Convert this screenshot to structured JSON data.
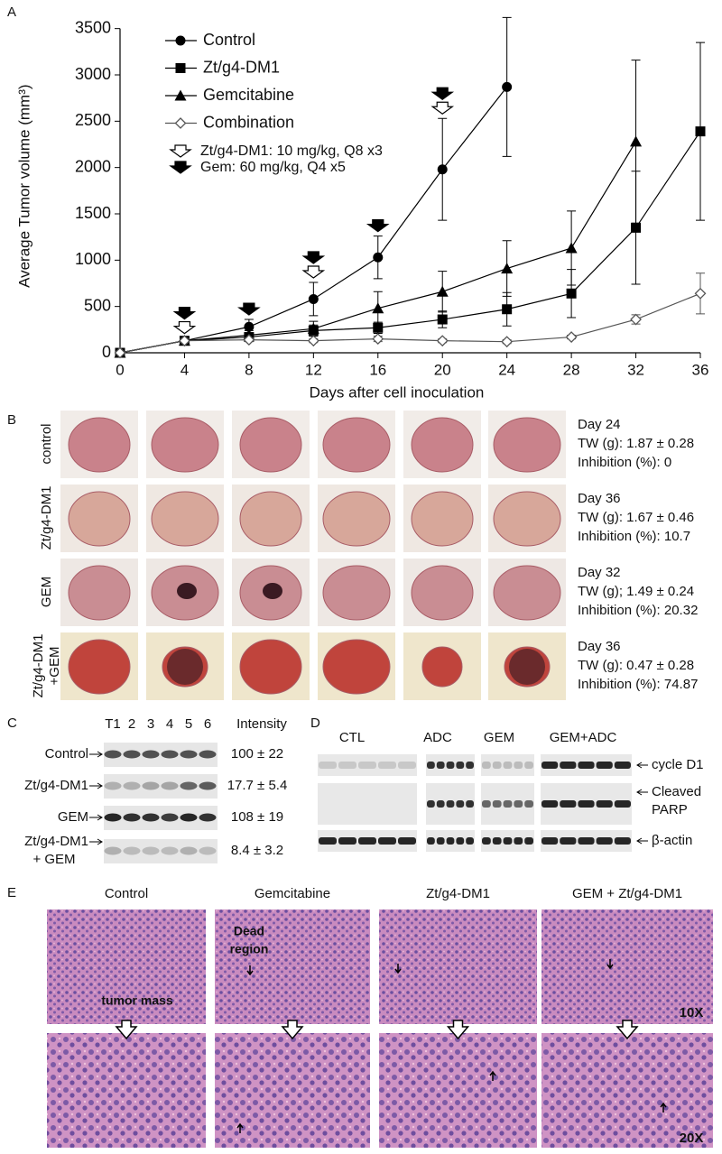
{
  "panel_labels": [
    "A",
    "B",
    "C",
    "D",
    "E"
  ],
  "chart_data": {
    "type": "line",
    "x_label": "Days after cell inoculation",
    "y_label": "Average Tumor volume (mm³)",
    "x": [
      0,
      4,
      8,
      12,
      16,
      20,
      24,
      28,
      32,
      36
    ],
    "xlim": [
      0,
      36
    ],
    "xticks": [
      0,
      4,
      8,
      12,
      16,
      20,
      24,
      28,
      32,
      36
    ],
    "ylim": [
      0,
      3600
    ],
    "yticks": [
      0,
      500,
      1000,
      1500,
      2000,
      2500,
      3000,
      3500
    ],
    "series": [
      {
        "name": "Control",
        "color": "#000000",
        "marker": "circle",
        "values": [
          0,
          130,
          280,
          580,
          1030,
          1980,
          2870,
          null,
          null,
          null
        ],
        "errors": [
          0,
          30,
          80,
          180,
          230,
          550,
          750,
          null,
          null,
          null
        ]
      },
      {
        "name": "Zt/g4-DM1",
        "color": "#000000",
        "marker": "square",
        "values": [
          0,
          130,
          170,
          240,
          270,
          360,
          470,
          640,
          1350,
          2390
        ],
        "errors": [
          0,
          30,
          40,
          60,
          60,
          90,
          180,
          260,
          610,
          960
        ]
      },
      {
        "name": "Gemcitabine",
        "color": "#000000",
        "marker": "triangle",
        "values": [
          0,
          130,
          190,
          260,
          480,
          660,
          910,
          1130,
          2280,
          null
        ],
        "errors": [
          0,
          30,
          50,
          80,
          180,
          220,
          300,
          400,
          880,
          null
        ]
      },
      {
        "name": "Combination",
        "color": "#555555",
        "marker": "diamond",
        "values": [
          0,
          130,
          140,
          130,
          150,
          130,
          120,
          170,
          360,
          640
        ],
        "errors": [
          0,
          20,
          20,
          20,
          30,
          20,
          20,
          20,
          50,
          220
        ]
      }
    ],
    "dosing": [
      {
        "text": "Zt/g4-DM1: 10 mg/kg, Q8 x3",
        "style": "open",
        "days": [
          4,
          12,
          20
        ]
      },
      {
        "text": "Gem: 60 mg/kg, Q4 x5",
        "style": "filled",
        "days": [
          4,
          8,
          12,
          16,
          20
        ]
      }
    ]
  },
  "panel_b": {
    "rows": [
      {
        "label": [
          "control"
        ],
        "stats": [
          "Day 24",
          "TW (g): 1.87 ± 0.28",
          "Inhibition (%): 0"
        ]
      },
      {
        "label": [
          "Zt/g4-DM1"
        ],
        "stats": [
          "Day 36",
          "TW (g): 1.67 ± 0.46",
          "Inhibition (%): 10.7"
        ]
      },
      {
        "label": [
          "GEM"
        ],
        "stats": [
          "Day 32",
          "TW (g); 1.49 ±  0.24",
          "Inhibition (%): 20.32"
        ]
      },
      {
        "label": [
          "Zt/g4-DM1",
          "+GEM"
        ],
        "stats": [
          "Day 36",
          "TW (g): 0.47 ±  0.28",
          "Inhibition (%): 74.87"
        ]
      }
    ]
  },
  "panel_c": {
    "lanes": [
      "T1",
      "2",
      "3",
      "4",
      "5",
      "6"
    ],
    "intensity_header": "Intensity",
    "rows": [
      {
        "label": [
          "Control"
        ],
        "intensity": "100 ± 22"
      },
      {
        "label": [
          "Zt/g4-DM1"
        ],
        "intensity": "17.7 ± 5.4"
      },
      {
        "label": [
          "GEM"
        ],
        "intensity": "108 ± 19"
      },
      {
        "label": [
          "Zt/g4-DM1",
          "+ GEM"
        ],
        "intensity": "8.4 ± 3.2"
      }
    ]
  },
  "panel_d": {
    "groups": [
      "CTL",
      "ADC",
      "GEM",
      "GEM+ADC"
    ],
    "rows": [
      {
        "label": [
          "cycle D1"
        ]
      },
      {
        "label": [
          "Cleaved",
          "PARP"
        ]
      },
      {
        "label": [
          "β-actin"
        ]
      }
    ]
  },
  "panel_e": {
    "columns": [
      "Control",
      "Gemcitabine",
      "Zt/g4-DM1",
      "GEM + Zt/g4-DM1"
    ],
    "dead_region": [
      "Dead",
      "region"
    ],
    "tumor_mass": "tumor mass",
    "mag_top": "10X",
    "mag_bottom": "20X"
  }
}
